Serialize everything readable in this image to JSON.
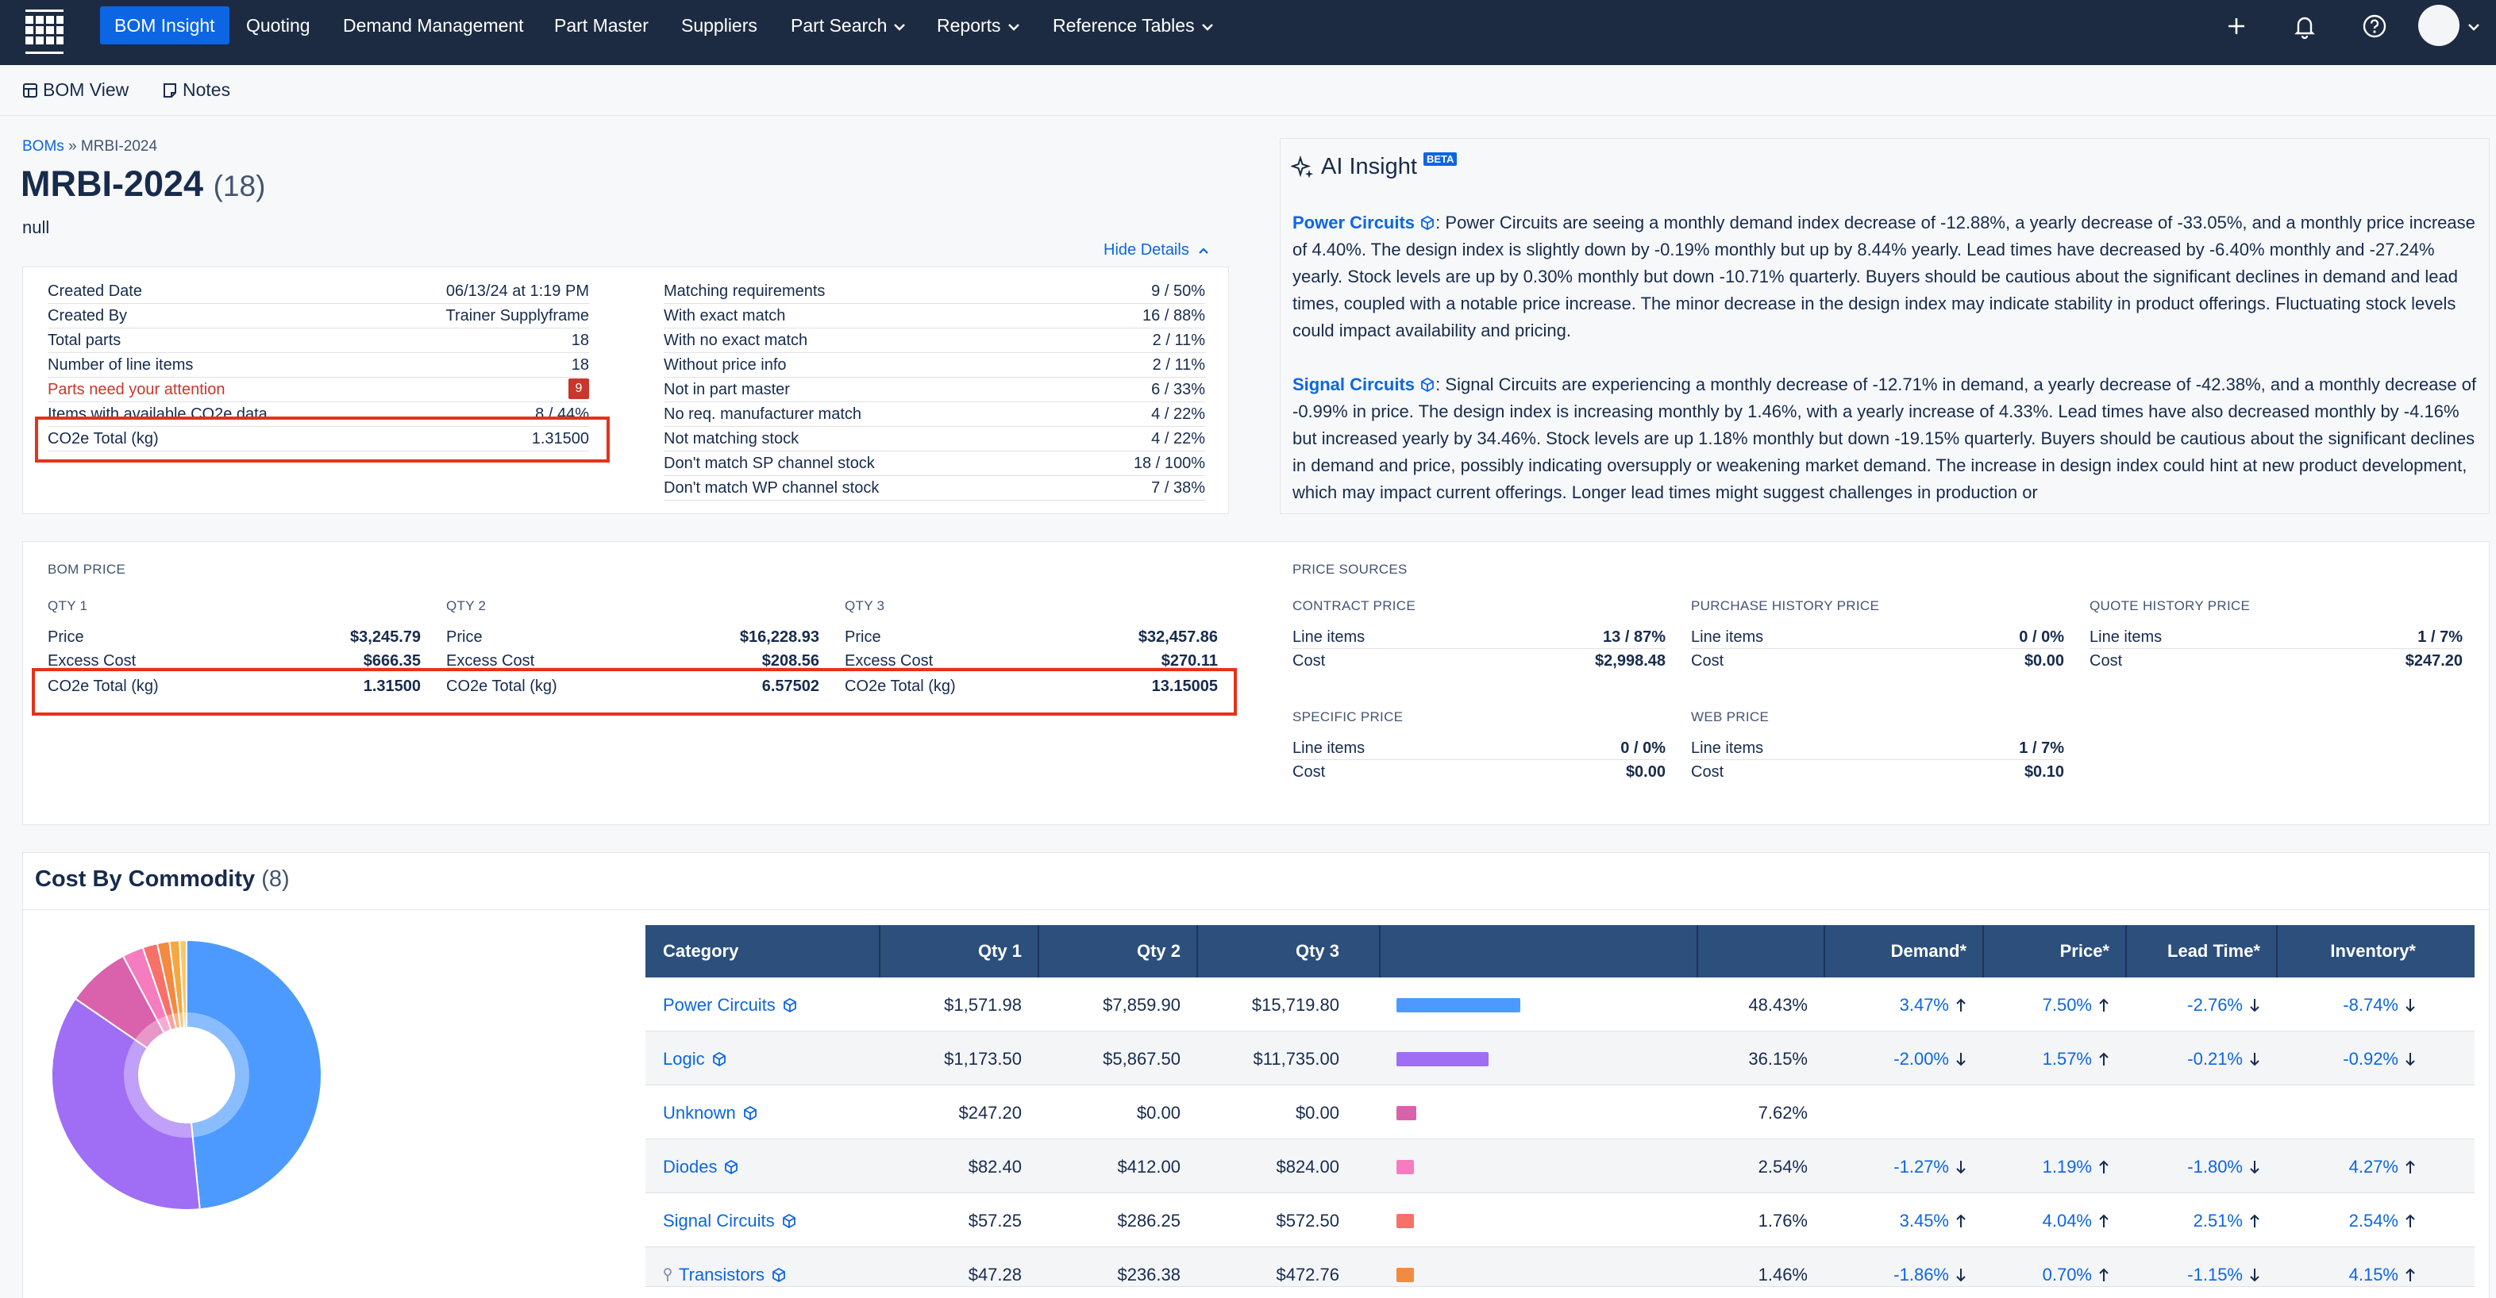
{
  "nav": {
    "items": [
      {
        "label": "BOM Insight",
        "active": true
      },
      {
        "label": "Quoting"
      },
      {
        "label": "Demand Management"
      },
      {
        "label": "Part Master"
      },
      {
        "label": "Suppliers"
      },
      {
        "label": "Part Search",
        "dropdown": true
      },
      {
        "label": "Reports",
        "dropdown": true
      },
      {
        "label": "Reference Tables",
        "dropdown": true
      }
    ],
    "icons": [
      "plus-icon",
      "bell-icon",
      "help-icon",
      "avatar"
    ]
  },
  "toolbar": {
    "bom_view": "BOM View",
    "notes": "Notes"
  },
  "breadcrumb": {
    "root": "BOMs",
    "sep": "»",
    "current": "MRBI-2024"
  },
  "page": {
    "title": "MRBI-2024",
    "count": "(18)",
    "subtitle": "null",
    "hide_details": "Hide Details"
  },
  "details_left": [
    {
      "k": "Created Date",
      "v": "06/13/24 at 1:19 PM"
    },
    {
      "k": "Created By",
      "v": "Trainer Supplyframe"
    },
    {
      "k": "Total parts",
      "v": "18"
    },
    {
      "k": "Number of line items",
      "v": "18"
    },
    {
      "k": "Parts need your attention",
      "v": "9"
    },
    {
      "k": "Items with available CO2e data",
      "v": "8 / 44%"
    },
    {
      "k": "CO2e Total (kg)",
      "v": "1.31500"
    }
  ],
  "details_right": [
    {
      "k": "Matching requirements",
      "v": "9 / 50%"
    },
    {
      "k": "With exact match",
      "v": "16 / 88%"
    },
    {
      "k": "With no exact match",
      "v": "2 / 11%"
    },
    {
      "k": "Without price info",
      "v": "2 / 11%"
    },
    {
      "k": "Not in part master",
      "v": "6 / 33%"
    },
    {
      "k": "No req. manufacturer match",
      "v": "4 / 22%"
    },
    {
      "k": "Not matching stock",
      "v": "4 / 22%"
    },
    {
      "k": "Don't match SP channel stock",
      "v": "18 / 100%"
    },
    {
      "k": "Don't match WP channel stock",
      "v": "7 / 38%"
    }
  ],
  "ai": {
    "title": "AI Insight",
    "beta": "BETA",
    "p1_link": "Power Circuits",
    "p1_text": ": Power Circuits are seeing a monthly demand index decrease of -12.88%, a yearly decrease of -33.05%, and a monthly price increase of 4.40%. The design index is slightly down by -0.19% monthly but up by 8.44% yearly. Lead times have decreased by -6.40% monthly and -27.24% yearly. Stock levels are up by 0.30% monthly but down -10.71% quarterly. Buyers should be cautious about the significant declines in demand and lead times, coupled with a notable price increase. The minor decrease in the design index may indicate stability in product offerings. Fluctuating stock levels could impact availability and pricing.",
    "p2_link": "Signal Circuits",
    "p2_text": ": Signal Circuits are experiencing a monthly decrease of -12.71% in demand, a yearly decrease of -42.38%, and a monthly decrease of -0.99% in price. The design index is increasing monthly by 1.46%, with a yearly increase of 4.33%. Lead times have also decreased monthly by -4.16% but increased yearly by 34.46%. Stock levels are up 1.18% monthly but down -19.15% quarterly. Buyers should be cautious about the significant declines in demand and price, possibly indicating oversupply or weakening market demand. The increase in design index could hint at new product development, which may impact current offerings. Longer lead times might suggest challenges in production or"
  },
  "bom_price": {
    "label": "BOM PRICE",
    "qtys": [
      {
        "label": "QTY 1",
        "price": "$3,245.79",
        "excess": "$666.35",
        "co2": "1.31500"
      },
      {
        "label": "QTY 2",
        "price": "$16,228.93",
        "excess": "$208.56",
        "co2": "6.57502"
      },
      {
        "label": "QTY 3",
        "price": "$32,457.86",
        "excess": "$270.11",
        "co2": "13.15005"
      }
    ],
    "price_label": "Price",
    "excess_label": "Excess Cost",
    "co2_label": "CO2e Total (kg)"
  },
  "price_sources": {
    "label": "PRICE SOURCES",
    "line_items_label": "Line items",
    "cost_label": "Cost",
    "sources": [
      {
        "label": "CONTRACT PRICE",
        "line_items": "13 / 87%",
        "cost": "$2,998.48"
      },
      {
        "label": "PURCHASE HISTORY PRICE",
        "line_items": "0 / 0%",
        "cost": "$0.00"
      },
      {
        "label": "QUOTE HISTORY PRICE",
        "line_items": "1 / 7%",
        "cost": "$247.20"
      },
      {
        "label": "SPECIFIC PRICE",
        "line_items": "0 / 0%",
        "cost": "$0.00"
      },
      {
        "label": "WEB PRICE",
        "line_items": "1 / 7%",
        "cost": "$0.10"
      }
    ]
  },
  "commodity": {
    "title": "Cost By Commodity",
    "count": "(8)",
    "headers": [
      "Category",
      "Qty 1",
      "Qty 2",
      "Qty 3",
      "",
      "",
      "Demand*",
      "Price*",
      "Lead Time*",
      "Inventory*"
    ],
    "rows": [
      {
        "category": "Power Circuits",
        "icon": "cube-icon",
        "q1": "$1,571.98",
        "q2": "$7,859.90",
        "q3": "$15,719.80",
        "share": 48.43,
        "pct": "48.43%",
        "color": "#4c9aff",
        "demand": "3.47%",
        "demand_dir": "up",
        "price": "7.50%",
        "price_dir": "up",
        "lead": "-2.76%",
        "lead_dir": "down",
        "inv": "-8.74%",
        "inv_dir": "down"
      },
      {
        "category": "Logic",
        "icon": "cube-icon",
        "q1": "$1,173.50",
        "q2": "$5,867.50",
        "q3": "$11,735.00",
        "share": 36.15,
        "pct": "36.15%",
        "color": "#9f6ef5",
        "demand": "-2.00%",
        "demand_dir": "down",
        "price": "1.57%",
        "price_dir": "up",
        "lead": "-0.21%",
        "lead_dir": "down",
        "inv": "-0.92%",
        "inv_dir": "down"
      },
      {
        "category": "Unknown",
        "icon": "cube-icon",
        "q1": "$247.20",
        "q2": "$0.00",
        "q3": "$0.00",
        "share": 7.62,
        "pct": "7.62%",
        "color": "#da62ac",
        "demand": "",
        "demand_dir": "",
        "price": "",
        "price_dir": "",
        "lead": "",
        "lead_dir": "",
        "inv": "",
        "inv_dir": ""
      },
      {
        "category": "Diodes",
        "icon": "cube-icon",
        "q1": "$82.40",
        "q2": "$412.00",
        "q3": "$824.00",
        "share": 2.54,
        "pct": "2.54%",
        "color": "#f57dbf",
        "demand": "-1.27%",
        "demand_dir": "down",
        "price": "1.19%",
        "price_dir": "up",
        "lead": "-1.80%",
        "lead_dir": "down",
        "inv": "4.27%",
        "inv_dir": "up"
      },
      {
        "category": "Signal Circuits",
        "icon": "cube-icon",
        "q1": "$57.25",
        "q2": "$286.25",
        "q3": "$572.50",
        "share": 1.76,
        "pct": "1.76%",
        "color": "#f87168",
        "demand": "3.45%",
        "demand_dir": "up",
        "price": "4.04%",
        "price_dir": "up",
        "lead": "2.51%",
        "lead_dir": "up",
        "inv": "2.54%",
        "inv_dir": "up"
      },
      {
        "category": "Transistors",
        "icon": "cube-icon",
        "q1": "$47.28",
        "q2": "$236.38",
        "q3": "$472.76",
        "share": 1.46,
        "pct": "1.46%",
        "color": "#f38a3f",
        "demand": "-1.86%",
        "demand_dir": "down",
        "price": "0.70%",
        "price_dir": "up",
        "lead": "-1.15%",
        "lead_dir": "down",
        "inv": "4.15%",
        "inv_dir": "up"
      }
    ],
    "donut_extra": [
      {
        "share": 1.2,
        "color": "#f5a742"
      },
      {
        "share": 0.84,
        "color": "#f8c86b"
      }
    ]
  }
}
